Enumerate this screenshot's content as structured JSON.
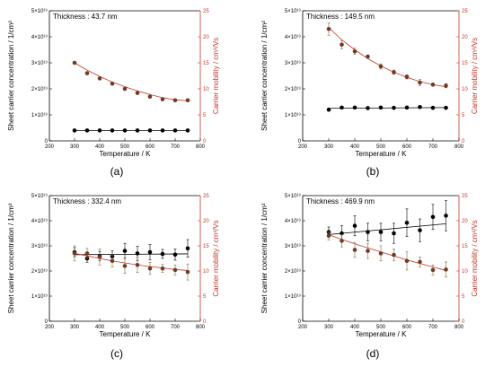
{
  "colors": {
    "black": "#000000",
    "red": "#c0392b",
    "mobility_marker": "#6e3b26",
    "error_bar": "#8a6a3a"
  },
  "chart_data": [
    {
      "type": "scatter",
      "panel_label": "(a)",
      "annotation": "Thickness : 43.7 nm",
      "xlabel": "Temperature / K",
      "ylabel_left": "Sheet carrier concentration / 1/cm²",
      "ylabel_right": "Carrier mobility / cm²/Vs",
      "xlim": [
        200,
        800
      ],
      "ylim_left": [
        0,
        5e+19
      ],
      "ylim_right": [
        0,
        25
      ],
      "x_ticks": [
        "200",
        "300",
        "400",
        "500",
        "600",
        "700",
        "800"
      ],
      "y_left_ticks": [
        "0",
        "1×10¹⁹",
        "2×10¹⁹",
        "3×10¹⁹",
        "4×10¹⁹",
        "5×10¹⁹"
      ],
      "y_right_ticks": [
        "0",
        "5",
        "10",
        "15",
        "20",
        "25"
      ],
      "series": [
        {
          "axis": "left",
          "x": [
            300,
            350,
            400,
            450,
            500,
            550,
            600,
            650,
            700,
            750
          ],
          "values": [
            4e+18,
            4e+18,
            4e+18,
            4e+18,
            4e+18,
            4e+18,
            4e+18,
            4e+18,
            4e+18,
            4e+18
          ],
          "errors": [
            0,
            0,
            0,
            0,
            0,
            0,
            0,
            0,
            0,
            0
          ],
          "fit": [
            4e+18,
            4e+18
          ]
        },
        {
          "axis": "right",
          "x": [
            300,
            350,
            400,
            450,
            500,
            550,
            600,
            650,
            700,
            750
          ],
          "values": [
            15.0,
            13.0,
            12.0,
            11.0,
            10.0,
            9.2,
            8.5,
            8.0,
            7.8,
            7.8
          ],
          "errors": [
            0,
            0,
            0,
            0,
            0,
            0,
            0,
            0,
            0,
            0
          ],
          "fit_curve": [
            15.0,
            13.6,
            12.4,
            11.3,
            10.4,
            9.6,
            8.9,
            8.3,
            7.9,
            7.7
          ]
        }
      ]
    },
    {
      "type": "scatter",
      "panel_label": "(b)",
      "annotation": "Thickness : 149.5 nm",
      "xlabel": "Temperature / K",
      "ylabel_left": "Sheet carrier concentration / 1/cm²",
      "ylabel_right": "Carrier mobility / cm²/Vs",
      "xlim": [
        200,
        800
      ],
      "ylim_left": [
        0,
        5e+19
      ],
      "ylim_right": [
        0,
        25
      ],
      "x_ticks": [
        "200",
        "300",
        "400",
        "500",
        "600",
        "700",
        "800"
      ],
      "y_left_ticks": [
        "0",
        "1×10¹⁹",
        "2×10¹⁹",
        "3×10¹⁹",
        "4×10¹⁹",
        "5×10¹⁹"
      ],
      "y_right_ticks": [
        "0",
        "5",
        "10",
        "15",
        "20",
        "25"
      ],
      "series": [
        {
          "axis": "left",
          "x": [
            300,
            350,
            400,
            450,
            500,
            550,
            600,
            650,
            700,
            750
          ],
          "values": [
            1.2e+19,
            1.28e+19,
            1.28e+19,
            1.26e+19,
            1.28e+19,
            1.27e+19,
            1.28e+19,
            1.3e+19,
            1.27e+19,
            1.27e+19
          ],
          "errors": [
            0,
            0,
            0,
            0,
            0,
            0,
            0,
            0,
            0,
            0
          ],
          "fit": [
            1.25e+19,
            1.28e+19
          ]
        },
        {
          "axis": "right",
          "x": [
            300,
            350,
            400,
            450,
            500,
            550,
            600,
            650,
            700,
            750
          ],
          "values": [
            21.5,
            18.5,
            17.2,
            16.2,
            14.3,
            13.2,
            12.3,
            11.2,
            10.8,
            10.6
          ],
          "errors": [
            1.2,
            0.8,
            0.6,
            0.3,
            0.5,
            0.4,
            0.4,
            0.6,
            0.3,
            0.4
          ],
          "fit_curve": [
            21.8,
            19.4,
            17.5,
            15.8,
            14.4,
            13.2,
            12.2,
            11.4,
            10.8,
            10.4
          ]
        }
      ]
    },
    {
      "type": "scatter",
      "panel_label": "(c)",
      "annotation": "Thickness : 332.4 nm",
      "xlabel": "Temperature / K",
      "ylabel_left": "Sheet carrier concentration / 1/cm²",
      "ylabel_right": "Carrier mobility / cm²/Vs",
      "xlim": [
        200,
        800
      ],
      "ylim_left": [
        0,
        5e+19
      ],
      "ylim_right": [
        0,
        25
      ],
      "x_ticks": [
        "200",
        "300",
        "400",
        "500",
        "600",
        "700",
        "800"
      ],
      "y_left_ticks": [
        "0",
        "1×10¹⁹",
        "2×10¹⁹",
        "3×10¹⁹",
        "4×10¹⁹",
        "5×10¹⁹"
      ],
      "y_right_ticks": [
        "0",
        "5",
        "10",
        "15",
        "20",
        "25"
      ],
      "series": [
        {
          "axis": "left",
          "x": [
            300,
            350,
            400,
            450,
            500,
            550,
            600,
            650,
            700,
            750
          ],
          "values": [
            2.75e+19,
            2.5e+19,
            2.6e+19,
            2.58e+19,
            2.8e+19,
            2.7e+19,
            2.75e+19,
            2.68e+19,
            2.65e+19,
            2.9e+19
          ],
          "errors": [
            1.8e+18,
            1.5e+18,
            1.8e+18,
            2.2e+18,
            3e+18,
            2.8e+18,
            3e+18,
            1.8e+18,
            2.2e+18,
            3.5e+18
          ],
          "fit": [
            2.65e+19,
            2.68e+19
          ]
        },
        {
          "axis": "right",
          "x": [
            300,
            350,
            400,
            450,
            500,
            550,
            600,
            650,
            700,
            750
          ],
          "values": [
            13.5,
            13.5,
            12.8,
            12.0,
            11.0,
            11.2,
            10.5,
            10.5,
            10.2,
            9.8
          ],
          "errors": [
            1.5,
            1.0,
            1.6,
            1.2,
            1.5,
            1.5,
            1.2,
            0.8,
            1.0,
            1.6
          ],
          "fit_curve": [
            13.5,
            13.0,
            12.5,
            12.0,
            11.6,
            11.2,
            10.9,
            10.6,
            10.3,
            10.1
          ]
        }
      ]
    },
    {
      "type": "scatter",
      "panel_label": "(d)",
      "annotation": "Thickness : 469.9 nm",
      "xlabel": "Temperature / K",
      "ylabel_left": "Sheet carrier concentration / 1/cm²",
      "ylabel_right": "Carrier mobility / cm²/Vs",
      "xlim": [
        200,
        800
      ],
      "ylim_left": [
        0,
        5e+19
      ],
      "ylim_right": [
        0,
        25
      ],
      "x_ticks": [
        "200",
        "300",
        "400",
        "500",
        "600",
        "700",
        "800"
      ],
      "y_left_ticks": [
        "0",
        "1×10¹⁹",
        "2×10¹⁹",
        "3×10¹⁹",
        "4×10¹⁹",
        "5×10¹⁹"
      ],
      "y_right_ticks": [
        "0",
        "5",
        "10",
        "15",
        "20",
        "25"
      ],
      "series": [
        {
          "axis": "left",
          "x": [
            300,
            350,
            400,
            450,
            500,
            550,
            600,
            650,
            700,
            750
          ],
          "values": [
            3.55e+19,
            3.5e+19,
            3.8e+19,
            3.55e+19,
            3.55e+19,
            3.5e+19,
            3.92e+19,
            3.62e+19,
            4.15e+19,
            4.2e+19
          ],
          "errors": [
            2e+18,
            3e+18,
            4e+18,
            3.5e+18,
            3.5e+18,
            4e+18,
            5.5e+18,
            4.5e+18,
            5e+18,
            6e+18
          ],
          "fit": [
            3.45e+19,
            3.88e+19
          ]
        },
        {
          "axis": "right",
          "x": [
            300,
            350,
            400,
            450,
            500,
            550,
            600,
            650,
            700,
            750
          ],
          "values": [
            17.0,
            16.0,
            14.2,
            14.0,
            13.5,
            13.2,
            12.0,
            11.8,
            10.2,
            10.3
          ],
          "errors": [
            0.8,
            1.2,
            1.5,
            1.5,
            1.5,
            1.2,
            1.8,
            1.0,
            1.0,
            1.5
          ],
          "fit_curve": [
            17.2,
            16.3,
            15.4,
            14.6,
            13.8,
            13.0,
            12.2,
            11.5,
            10.8,
            10.1
          ]
        }
      ]
    }
  ]
}
